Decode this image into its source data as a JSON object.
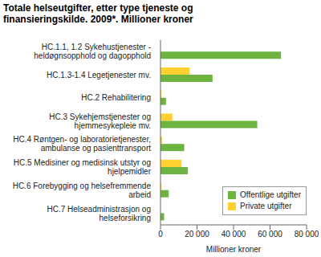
{
  "chart_data": {
    "type": "bar",
    "orientation": "horizontal",
    "title": "Totale helseutgifter, etter type tjeneste og finansieringskilde. 2009*. Millioner kroner",
    "xlabel": "Millioner kroner",
    "categories": [
      "HC.1.1, 1.2 Sykehustjenester - heldøgnsopphold og dagopphold",
      "HC.1.3-1.4 Legetjenester mv.",
      "HC.2 Rehabilitering",
      "HC.3 Sykehjemstjenester og hjemmesykepleie mv.",
      "HC.4 Røntgen- og laboratorietjenester, ambulanse og pasienttransport",
      "HC.5 Medisiner og medisinsk utstyr og hjelpemidler",
      "HC.6 Forebygging og helsefremmende arbeid",
      "HC.7 Helseadministrasjon og helseforsikring"
    ],
    "series": [
      {
        "name": "Offentlige utgifter",
        "color": "#6cb33f",
        "values": [
          66000,
          28500,
          3000,
          53000,
          13000,
          15000,
          4500,
          2000
        ]
      },
      {
        "name": "Private utgifter",
        "color": "#ffd02f",
        "values": [
          0,
          16000,
          500,
          6500,
          1000,
          11500,
          500,
          0
        ]
      }
    ],
    "xlim": [
      0,
      80000
    ],
    "xticks": [
      0,
      {
        "value": 20000,
        "label": "20 000"
      },
      {
        "value": 40000,
        "label": "40 000"
      },
      {
        "value": 60000,
        "label": "60 000"
      },
      {
        "value": 80000,
        "label": "80 000"
      }
    ],
    "grid": false,
    "legend": "lower right"
  }
}
